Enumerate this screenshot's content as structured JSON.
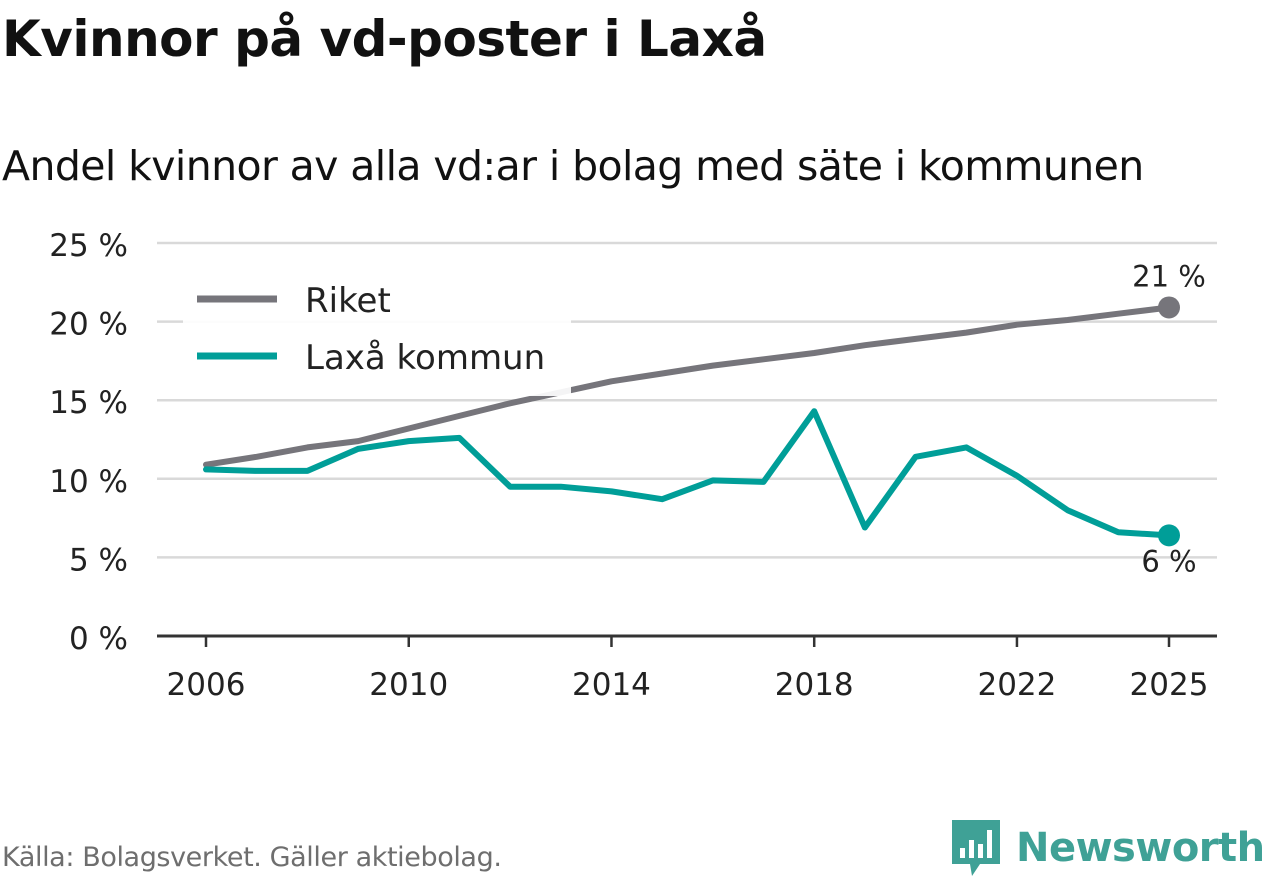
{
  "title": "Kvinnor på vd-poster i Laxå",
  "subtitle": "Andel kvinnor av alla vd:ar i bolag med säte i kommunen",
  "source": "Källa: Bolagsverket. Gäller aktiebolag.",
  "brand": {
    "name": "Newsworthy",
    "color": "#3fa196"
  },
  "colors": {
    "riket": "#76757b",
    "laxa": "#009e98",
    "grid": "#d9d9d9",
    "axis": "#333333",
    "text": "#222222"
  },
  "chart_data": {
    "type": "line",
    "title": "Kvinnor på vd-poster i Laxå",
    "subtitle": "Andel kvinnor av alla vd:ar i bolag med säte i kommunen",
    "xlabel": "",
    "ylabel": "",
    "xlim": [
      2006,
      2025
    ],
    "ylim": [
      0,
      25
    ],
    "yticks": [
      0,
      5,
      10,
      15,
      20,
      25
    ],
    "ytick_labels": [
      "0 %",
      "5 %",
      "10 %",
      "15 %",
      "20 %",
      "25 %"
    ],
    "xticks": [
      2006,
      2010,
      2014,
      2018,
      2022,
      2025
    ],
    "xtick_labels": [
      "2006",
      "2010",
      "2014",
      "2018",
      "2022",
      "2025"
    ],
    "grid": true,
    "legend_position": "top-left",
    "x": [
      2006,
      2007,
      2008,
      2009,
      2010,
      2011,
      2012,
      2013,
      2014,
      2015,
      2016,
      2017,
      2018,
      2019,
      2020,
      2021,
      2022,
      2023,
      2024,
      2025
    ],
    "series": [
      {
        "name": "Riket",
        "key": "riket",
        "values": [
          10.9,
          11.4,
          12.0,
          12.4,
          13.2,
          14.0,
          14.8,
          15.5,
          16.2,
          16.7,
          17.2,
          17.6,
          18.0,
          18.5,
          18.9,
          19.3,
          19.8,
          20.1,
          20.5,
          20.9
        ],
        "end_label": "21 %"
      },
      {
        "name": "Laxå kommun",
        "key": "laxa",
        "values": [
          10.6,
          10.5,
          10.5,
          11.9,
          12.4,
          12.6,
          9.5,
          9.5,
          9.2,
          8.7,
          9.9,
          9.8,
          14.3,
          6.9,
          11.4,
          12.0,
          10.2,
          8.0,
          6.6,
          6.4
        ],
        "end_label": "6 %"
      }
    ]
  }
}
